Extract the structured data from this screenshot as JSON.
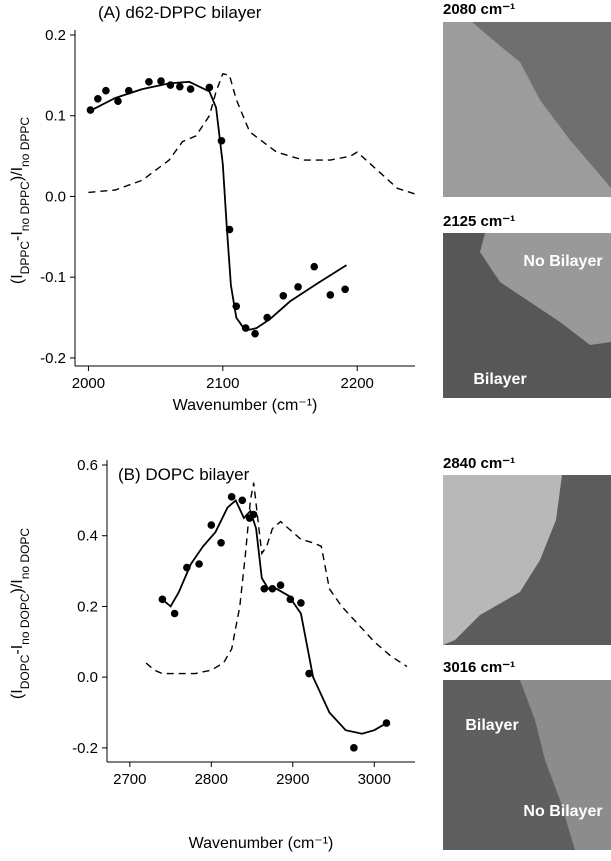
{
  "chart_data": [
    {
      "type": "line",
      "title": "(A) d62-DPPC bilayer",
      "ylabel": [
        "(I",
        "DPPC",
        "-I",
        "no DPPC",
        ")/I",
        "no DPPC"
      ],
      "xlabel": "Wavenumber (cm⁻¹)",
      "xlim": [
        1990,
        2243
      ],
      "xticks": [
        2000,
        2100,
        2200
      ],
      "ylim": [
        -0.21,
        0.2
      ],
      "yticks": [
        0.2,
        0.1,
        {
          "value": 0,
          "label": "0.0"
        },
        -0.1,
        -0.2
      ],
      "series": [
        {
          "style": "points",
          "color": "#000000",
          "x": [
            2001.5,
            2007,
            2013,
            2022,
            2030,
            2045,
            2054,
            2061,
            2068,
            2076,
            2090,
            2099,
            2105,
            2110,
            2117,
            2124,
            2133,
            2145,
            2156,
            2168,
            2180,
            2191
          ],
          "values": [
            0.107,
            0.121,
            0.131,
            0.118,
            0.131,
            0.142,
            0.143,
            0.138,
            0.136,
            0.133,
            0.135,
            0.069,
            -0.041,
            -0.136,
            -0.163,
            -0.17,
            -0.15,
            -0.123,
            -0.112,
            -0.087,
            -0.122,
            -0.115
          ]
        },
        {
          "style": "solid",
          "color": "#000000",
          "x": [
            2000,
            2020,
            2040,
            2060,
            2075,
            2090,
            2095,
            2100,
            2103,
            2106,
            2110,
            2115,
            2120,
            2125,
            2135,
            2150,
            2170,
            2192
          ],
          "values": [
            0.105,
            0.122,
            0.133,
            0.14,
            0.142,
            0.13,
            0.11,
            0.04,
            -0.04,
            -0.11,
            -0.15,
            -0.162,
            -0.165,
            -0.163,
            -0.152,
            -0.13,
            -0.108,
            -0.085
          ]
        },
        {
          "style": "dashed",
          "color": "#000000",
          "x": [
            2000,
            2020,
            2040,
            2060,
            2070,
            2080,
            2090,
            2095,
            2100,
            2105,
            2110,
            2120,
            2140,
            2160,
            2180,
            2195,
            2200,
            2210,
            2230,
            2245
          ],
          "values": [
            0.005,
            0.008,
            0.02,
            0.045,
            0.068,
            0.075,
            0.1,
            0.13,
            0.152,
            0.15,
            0.12,
            0.08,
            0.055,
            0.045,
            0.045,
            0.05,
            0.055,
            0.04,
            0.01,
            0.002
          ]
        }
      ]
    },
    {
      "type": "line",
      "title": "(B) DOPC bilayer",
      "ylabel": [
        "(I",
        "DOPC",
        "-I",
        "no DOPC",
        ")/I",
        "no DOPC"
      ],
      "xlabel": "Wavenumber (cm⁻¹)",
      "xlim": [
        2672,
        3050
      ],
      "xticks": [
        2700,
        2800,
        2900,
        3000
      ],
      "ylim": [
        -0.24,
        0.6
      ],
      "yticks": [
        0.6,
        0.4,
        0.2,
        {
          "value": 0,
          "label": "0.0"
        },
        -0.2
      ],
      "series": [
        {
          "style": "points",
          "color": "#000000",
          "x": [
            2740,
            2755,
            2770,
            2785,
            2800,
            2812,
            2825,
            2838,
            2847,
            2852,
            2865,
            2875,
            2885,
            2897,
            2910,
            2920,
            2975,
            3015
          ],
          "values": [
            0.22,
            0.18,
            0.31,
            0.32,
            0.43,
            0.38,
            0.51,
            0.5,
            0.45,
            0.46,
            0.25,
            0.25,
            0.26,
            0.22,
            0.21,
            0.01,
            -0.2,
            -0.13
          ]
        },
        {
          "style": "solid",
          "color": "#000000",
          "x": [
            2740,
            2750,
            2760,
            2775,
            2790,
            2805,
            2820,
            2830,
            2840,
            2848,
            2855,
            2862,
            2870,
            2880,
            2895,
            2910,
            2925,
            2945,
            2965,
            2985,
            3000,
            3015
          ],
          "values": [
            0.22,
            0.2,
            0.24,
            0.32,
            0.37,
            0.41,
            0.48,
            0.5,
            0.45,
            0.47,
            0.42,
            0.28,
            0.25,
            0.25,
            0.23,
            0.18,
            0.0,
            -0.1,
            -0.15,
            -0.16,
            -0.15,
            -0.13
          ]
        },
        {
          "style": "dashed",
          "color": "#000000",
          "x": [
            2720,
            2730,
            2740,
            2760,
            2780,
            2800,
            2815,
            2825,
            2835,
            2842,
            2848,
            2852,
            2857,
            2862,
            2868,
            2875,
            2885,
            2895,
            2910,
            2925,
            2935,
            2945,
            2960,
            2980,
            3000,
            3020,
            3040
          ],
          "values": [
            0.04,
            0.02,
            0.01,
            0.01,
            0.01,
            0.02,
            0.04,
            0.08,
            0.2,
            0.35,
            0.5,
            0.55,
            0.45,
            0.35,
            0.37,
            0.42,
            0.44,
            0.42,
            0.39,
            0.38,
            0.37,
            0.25,
            0.2,
            0.15,
            0.1,
            0.06,
            0.03
          ]
        }
      ]
    }
  ],
  "panels": [
    {
      "label": "2080 cm⁻¹"
    },
    {
      "label": "2125 cm⁻¹",
      "annotations": [
        "No Bilayer",
        "Bilayer"
      ]
    },
    {
      "label": "2840 cm⁻¹"
    },
    {
      "label": "3016 cm⁻¹",
      "annotations": [
        "Bilayer",
        "No Bilayer"
      ]
    }
  ]
}
